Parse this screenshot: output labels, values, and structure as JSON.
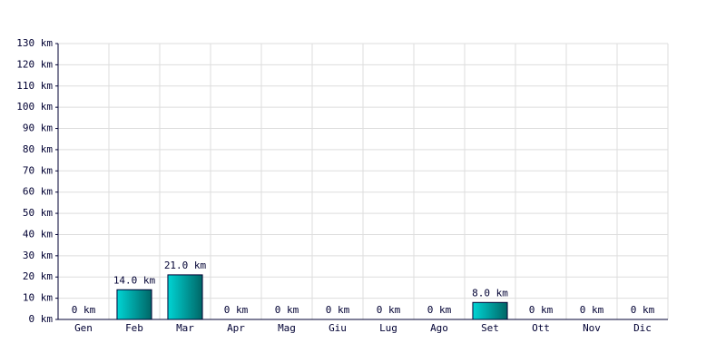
{
  "chart_data": {
    "type": "bar",
    "categories": [
      "Gen",
      "Feb",
      "Mar",
      "Apr",
      "Mag",
      "Giu",
      "Lug",
      "Ago",
      "Set",
      "Ott",
      "Nov",
      "Dic"
    ],
    "values": [
      0,
      14,
      21,
      0,
      0,
      0,
      0,
      0,
      8,
      0,
      0,
      0
    ],
    "value_labels": [
      "0 km",
      "14.0 km",
      "21.0 km",
      "0 km",
      "0 km",
      "0 km",
      "0 km",
      "0 km",
      "8.0 km",
      "0 km",
      "0 km",
      "0 km"
    ],
    "color": "#00d4d4",
    "ylim": [
      0,
      130
    ],
    "yticks": [
      {
        "value": 0,
        "label": "0 km"
      },
      {
        "value": 10,
        "label": "10 km"
      },
      {
        "value": 20,
        "label": "20 km"
      },
      {
        "value": 30,
        "label": "30 km"
      },
      {
        "value": 40,
        "label": "40 km"
      },
      {
        "value": 50,
        "label": "50 km"
      },
      {
        "value": 60,
        "label": "60 km"
      },
      {
        "value": 70,
        "label": "70 km"
      },
      {
        "value": 80,
        "label": "80 km"
      },
      {
        "value": 90,
        "label": "90 km"
      },
      {
        "value": 100,
        "label": "100 km"
      },
      {
        "value": 110,
        "label": "110 km"
      },
      {
        "value": 120,
        "label": "120 km"
      },
      {
        "value": 130,
        "label": "130 km"
      }
    ],
    "grid": true
  }
}
